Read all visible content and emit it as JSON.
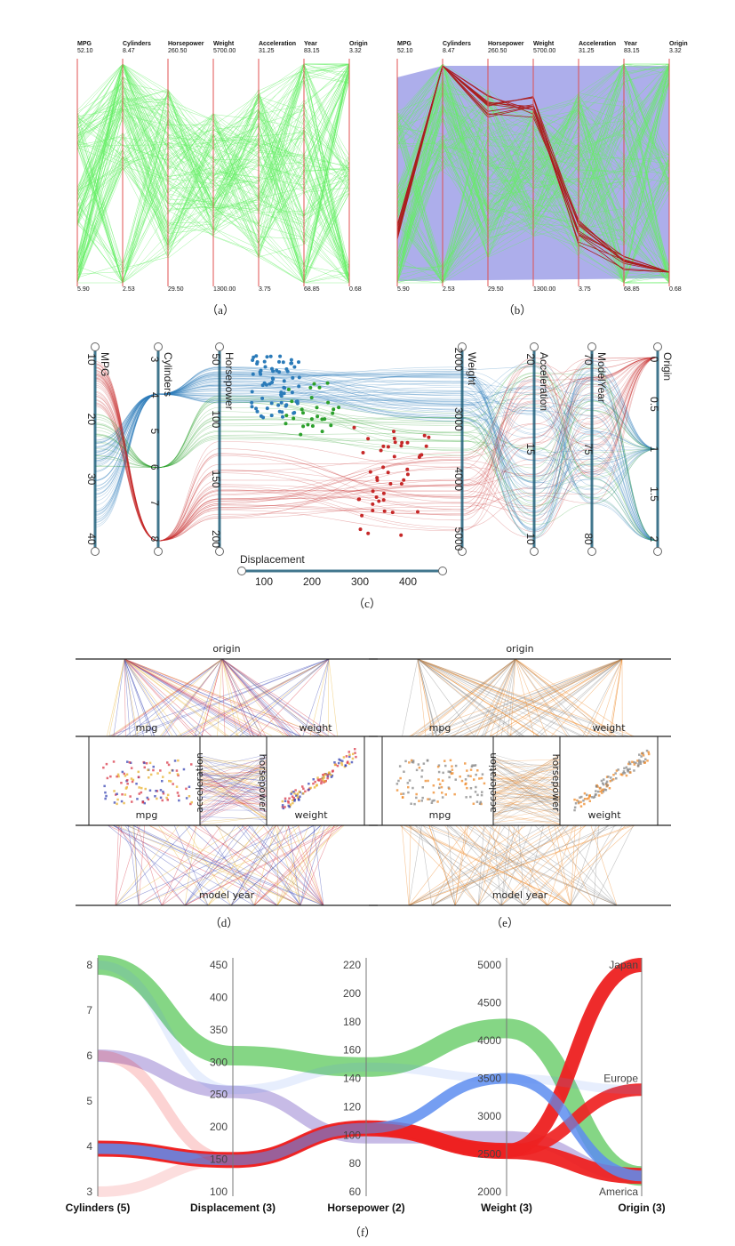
{
  "captions": [
    "（a）",
    "（b）",
    "（c）",
    "（d）",
    "（e）",
    "（f）"
  ],
  "chart_data": [
    {
      "panel": "a",
      "type": "parallel-coordinates",
      "axes": [
        {
          "name": "MPG",
          "max": "52.10",
          "min": "5.90"
        },
        {
          "name": "Cylinders",
          "max": "8.47",
          "min": "2.53"
        },
        {
          "name": "Horsepower",
          "max": "260.50",
          "min": "29.50"
        },
        {
          "name": "Weight",
          "max": "5700.00",
          "min": "1300.00"
        },
        {
          "name": "Acceleration",
          "max": "31.25",
          "min": "3.75"
        },
        {
          "name": "Year",
          "max": "83.15",
          "min": "68.85"
        },
        {
          "name": "Origin",
          "max": "3.32",
          "min": "0.68"
        }
      ],
      "colors": {
        "lines": "#66ee66",
        "axis": "#e05050"
      }
    },
    {
      "panel": "b",
      "type": "parallel-coordinates",
      "axes": [
        {
          "name": "MPG",
          "max": "52.10",
          "min": "5.90"
        },
        {
          "name": "Cylinders",
          "max": "8.47",
          "min": "2.53"
        },
        {
          "name": "Horsepower",
          "max": "260.50",
          "min": "29.50"
        },
        {
          "name": "Weight",
          "max": "5700.00",
          "min": "1300.00"
        },
        {
          "name": "Acceleration",
          "max": "31.25",
          "min": "3.75"
        },
        {
          "name": "Year",
          "max": "83.15",
          "min": "68.85"
        },
        {
          "name": "Origin",
          "max": "3.32",
          "min": "0.68"
        }
      ],
      "colors": {
        "lines": "#66ee66",
        "band": "#9fa0e8",
        "highlight": "#aa1e1e",
        "axis": "#e05050"
      }
    },
    {
      "panel": "c",
      "type": "parallel-coordinates",
      "axes": [
        {
          "name": "MPG",
          "ticks": [
            "10",
            "20",
            "30",
            "40"
          ]
        },
        {
          "name": "Cylinders",
          "ticks": [
            "3",
            "4",
            "5",
            "6",
            "7",
            "8"
          ]
        },
        {
          "name": "Horsepower",
          "ticks": [
            "50",
            "100",
            "150",
            "200"
          ]
        },
        {
          "name": "Weight",
          "ticks": [
            "2000",
            "3000",
            "4000",
            "5000"
          ]
        },
        {
          "name": "Acceleration",
          "ticks": [
            "20",
            "15",
            "10"
          ]
        },
        {
          "name": "ModelYear",
          "ticks": [
            "70",
            "75",
            "80"
          ]
        },
        {
          "name": "Origin",
          "ticks": [
            "0",
            "0.5",
            "1",
            "1.5",
            "2"
          ]
        }
      ],
      "displacement": {
        "name": "Displacement",
        "ticks": [
          "100",
          "200",
          "300",
          "400"
        ]
      },
      "colors": {
        "blue": "#2b7bb9",
        "green": "#2ca02c",
        "red": "#c62828"
      }
    },
    {
      "panel": "d",
      "type": "axis-network",
      "labels": [
        "origin",
        "mpg",
        "weight",
        "acceleration",
        "horsepower",
        "mpg",
        "weight",
        "model year"
      ],
      "colors": [
        "#e8b230",
        "#3a46b4",
        "#d93a4a"
      ]
    },
    {
      "panel": "e",
      "type": "axis-network",
      "labels": [
        "origin",
        "mpg",
        "weight",
        "acceleration",
        "horsepower",
        "mpg",
        "weight",
        "model year"
      ],
      "colors": [
        "#888888",
        "#ee8a2a"
      ]
    },
    {
      "panel": "f",
      "type": "parallel-sets",
      "axes": [
        {
          "name": "Cylinders (5)",
          "ticks": [
            "8",
            "7",
            "6",
            "5",
            "4",
            "3"
          ]
        },
        {
          "name": "Displacement (3)",
          "ticks": [
            "450",
            "400",
            "350",
            "300",
            "250",
            "200",
            "150",
            "100"
          ]
        },
        {
          "name": "Horsepower (2)",
          "ticks": [
            "220",
            "200",
            "180",
            "160",
            "140",
            "120",
            "100",
            "80",
            "60"
          ]
        },
        {
          "name": "Weight (3)",
          "ticks": [
            "5000",
            "4500",
            "4000",
            "3500",
            "3000",
            "2500",
            "2000"
          ]
        },
        {
          "name": "Origin (3)",
          "ticks": [
            "Japan",
            "Europe",
            "America"
          ]
        }
      ],
      "colors": {
        "green": "#5cc85c",
        "purple": "#a996d8",
        "red": "#ee2222",
        "blue": "#5d8df0"
      }
    }
  ]
}
